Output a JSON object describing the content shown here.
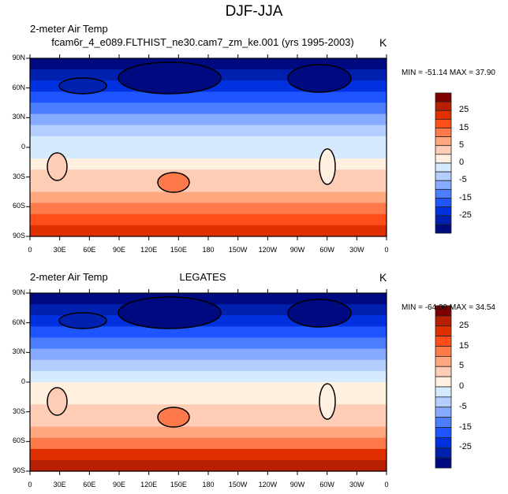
{
  "title": "DJF-JJA",
  "colorbar": {
    "labels": [
      "25",
      "15",
      "5",
      "0",
      "-5",
      "-15",
      "-25"
    ],
    "colors": [
      "#7f0000",
      "#b81e00",
      "#e03000",
      "#ff4e1a",
      "#ff7a4a",
      "#ffa880",
      "#ffcdb5",
      "#fff0e0",
      "#d6eaff",
      "#b3ceff",
      "#86aaff",
      "#4c7dff",
      "#1f55ff",
      "#0030e0",
      "#0020b0",
      "#000a80"
    ]
  },
  "lat_ticks": [
    "90N",
    "60N",
    "30N",
    "0",
    "30S",
    "60S",
    "90S"
  ],
  "lon_ticks": [
    "0",
    "30E",
    "60E",
    "90E",
    "120E",
    "150E",
    "180",
    "150W",
    "120W",
    "90W",
    "60W",
    "30W",
    "0"
  ],
  "panels": [
    {
      "left_string": "2-meter Air Temp",
      "center_string": "fcam6r_4_e089.FLTHIST_ne30.cam7_zm_ke.001 (yrs 1995-2003)",
      "units": "K",
      "minmax": "MIN = -51.14 MAX =  37.90",
      "bands": [
        15,
        14,
        13,
        12,
        11,
        10,
        9,
        8,
        8,
        7,
        6,
        6,
        5,
        4,
        3,
        2
      ]
    },
    {
      "left_string": "2-meter Air Temp",
      "center_string": "LEGATES",
      "units": "K",
      "minmax": "MIN = -64.00 MAX =  34.54",
      "bands": [
        15,
        14,
        13,
        12,
        11,
        10,
        9,
        8,
        7,
        7,
        6,
        6,
        5,
        4,
        2,
        1
      ]
    }
  ]
}
